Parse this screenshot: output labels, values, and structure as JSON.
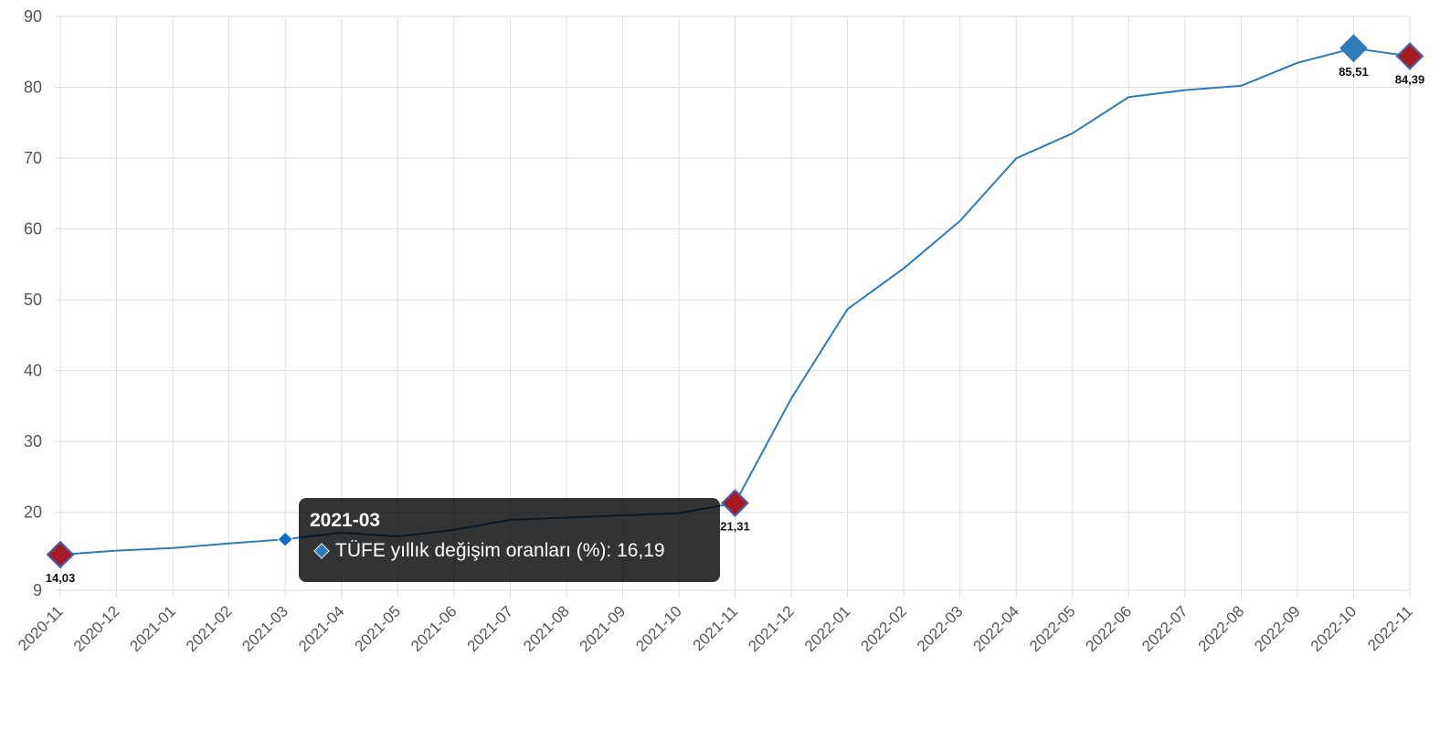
{
  "chart_data": {
    "type": "line",
    "categories": [
      "2020-11",
      "2020-12",
      "2021-01",
      "2021-02",
      "2021-03",
      "2021-04",
      "2021-05",
      "2021-06",
      "2021-07",
      "2021-08",
      "2021-09",
      "2021-10",
      "2021-11",
      "2021-12",
      "2022-01",
      "2022-02",
      "2022-03",
      "2022-04",
      "2022-05",
      "2022-06",
      "2022-07",
      "2022-08",
      "2022-09",
      "2022-10",
      "2022-11"
    ],
    "series": [
      {
        "name": "TÜFE yıllık değişim oranları (%)",
        "values": [
          14.03,
          14.6,
          14.97,
          15.61,
          16.19,
          17.14,
          16.59,
          17.53,
          18.95,
          19.25,
          19.58,
          19.89,
          21.31,
          36.08,
          48.69,
          54.44,
          61.14,
          69.97,
          73.5,
          78.62,
          79.6,
          80.21,
          83.45,
          85.51,
          84.39
        ],
        "color": "#2e7bb8"
      }
    ],
    "y_ticks": [
      "9",
      "20",
      "30",
      "40",
      "50",
      "60",
      "70",
      "80",
      "90"
    ],
    "ylim": [
      9,
      90
    ],
    "grid": true,
    "highlight_markers": [
      {
        "category": "2020-11",
        "label": "14,03",
        "color": "#a81a22",
        "stroke": "#3f67b2"
      },
      {
        "category": "2021-11",
        "label": "21,31",
        "color": "#a81a22",
        "stroke": "#3f67b2"
      },
      {
        "category": "2022-10",
        "label": "85,51",
        "color": "#2e7bb8",
        "stroke": "#2e7bb8"
      },
      {
        "category": "2022-11",
        "label": "84,39",
        "color": "#a81a22",
        "stroke": "#3f67b2"
      }
    ],
    "hover_point": {
      "category": "2021-03",
      "color": "#0c6fc7"
    },
    "tooltip": {
      "title": "2021-03",
      "text": "TÜFE yıllık değişim oranları (%): 16,19",
      "swatch_color": "#2e7bb8"
    }
  }
}
